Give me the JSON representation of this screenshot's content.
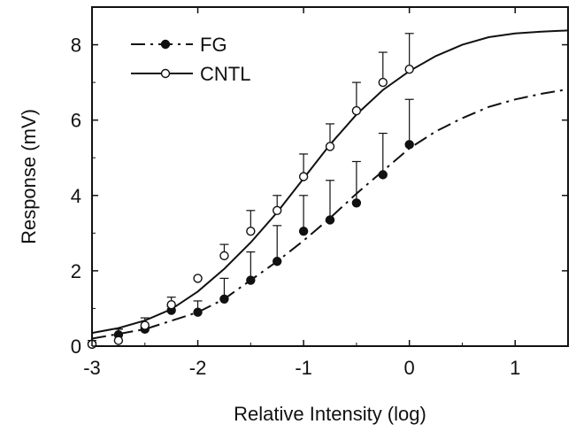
{
  "chart_data": {
    "type": "line",
    "title": "",
    "xlabel": "Relative Intensity (log)",
    "ylabel": "Response (mV)",
    "xlim": [
      -3,
      1.5
    ],
    "ylim": [
      0,
      9
    ],
    "x_ticks": [
      -3,
      -2,
      -1,
      0,
      1
    ],
    "x_tick_labels": [
      "-3",
      "-2",
      "-1",
      "0",
      "1"
    ],
    "y_ticks": [
      0,
      2,
      4,
      6,
      8
    ],
    "y_tick_labels": [
      "0",
      "2",
      "4",
      "6",
      "8"
    ],
    "grid": false,
    "legend_position": "top-left",
    "series": [
      {
        "name": "FG",
        "marker": "filled-circle",
        "line_style": "dash-dot",
        "color": "#111111",
        "points": {
          "x": [
            -3,
            -2.75,
            -2.5,
            -2.25,
            -2,
            -1.75,
            -1.5,
            -1.25,
            -1,
            -0.75,
            -0.5,
            -0.25,
            0
          ],
          "y": [
            0.05,
            0.3,
            0.45,
            0.95,
            0.9,
            1.25,
            1.75,
            2.25,
            3.05,
            3.35,
            3.8,
            4.55,
            5.35
          ],
          "error_upper": [
            0.1,
            0.45,
            0.5,
            1.05,
            1.2,
            1.8,
            2.5,
            3.2,
            4.0,
            4.4,
            4.9,
            5.65,
            6.55
          ]
        },
        "fit_curve": {
          "x": [
            -3,
            -2.5,
            -2,
            -1.75,
            -1.5,
            -1.25,
            -1,
            -0.75,
            -0.5,
            -0.25,
            0,
            0.25,
            0.5,
            0.75,
            1,
            1.25,
            1.5
          ],
          "y": [
            0.2,
            0.45,
            0.9,
            1.25,
            1.75,
            2.25,
            2.8,
            3.4,
            4.05,
            4.65,
            5.25,
            5.7,
            6.05,
            6.35,
            6.55,
            6.7,
            6.82
          ]
        }
      },
      {
        "name": "CNTL",
        "marker": "open-circle",
        "line_style": "solid",
        "color": "#111111",
        "points": {
          "x": [
            -3,
            -2.75,
            -2.5,
            -2.25,
            -2,
            -1.75,
            -1.5,
            -1.25,
            -1,
            -0.75,
            -0.5,
            -0.25,
            0
          ],
          "y": [
            0.05,
            0.15,
            0.55,
            1.1,
            1.8,
            2.4,
            3.05,
            3.6,
            4.5,
            5.3,
            6.25,
            7.0,
            7.35
          ],
          "error_upper": [
            0.15,
            0.45,
            0.75,
            1.3,
            1.8,
            2.7,
            3.6,
            4.0,
            5.1,
            5.9,
            7.0,
            7.8,
            8.3
          ]
        },
        "fit_curve": {
          "x": [
            -3,
            -2.75,
            -2.5,
            -2.25,
            -2,
            -1.75,
            -1.5,
            -1.25,
            -1,
            -0.75,
            -0.5,
            -0.25,
            0,
            0.25,
            0.5,
            0.75,
            1,
            1.25,
            1.5
          ],
          "y": [
            0.35,
            0.48,
            0.68,
            0.98,
            1.45,
            2.05,
            2.75,
            3.55,
            4.45,
            5.35,
            6.15,
            6.8,
            7.3,
            7.7,
            8.0,
            8.2,
            8.3,
            8.35,
            8.38
          ]
        }
      }
    ]
  }
}
